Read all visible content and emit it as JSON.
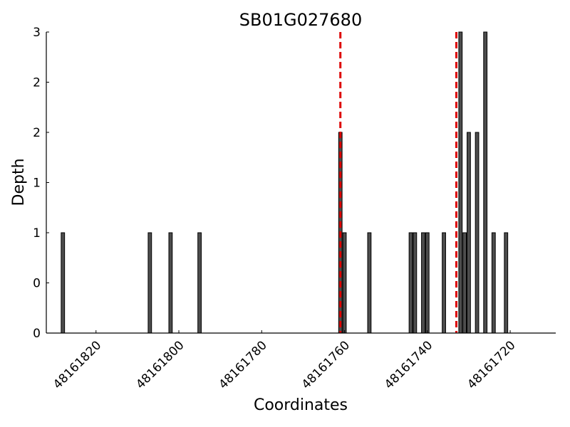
{
  "chart_data": {
    "type": "bar",
    "title": "SB01G027680",
    "xlabel": "Coordinates",
    "ylabel": "Depth",
    "x_axis_reversed": true,
    "xlim": [
      48161832,
      48161709
    ],
    "ylim": [
      0,
      3
    ],
    "y_tick_labels": [
      "0",
      "0",
      "1",
      "1",
      "2",
      "2",
      "3"
    ],
    "x_ticks": [
      48161820,
      48161800,
      48161780,
      48161760,
      48161740,
      48161720
    ],
    "x": [
      48161828,
      48161807,
      48161802,
      48161795,
      48161761,
      48161760,
      48161754,
      48161744,
      48161743,
      48161741,
      48161740,
      48161736,
      48161732,
      48161731,
      48161730,
      48161728,
      48161726,
      48161724,
      48161721
    ],
    "values": [
      1,
      1,
      1,
      1,
      2,
      1,
      1,
      1,
      1,
      1,
      1,
      1,
      3,
      1,
      2,
      2,
      3,
      1,
      1
    ],
    "reference_lines": [
      48161761,
      48161733
    ],
    "bar_color": "#4d4d4d",
    "reference_line_color": "#dd0000",
    "grid": false,
    "legend": "none"
  }
}
